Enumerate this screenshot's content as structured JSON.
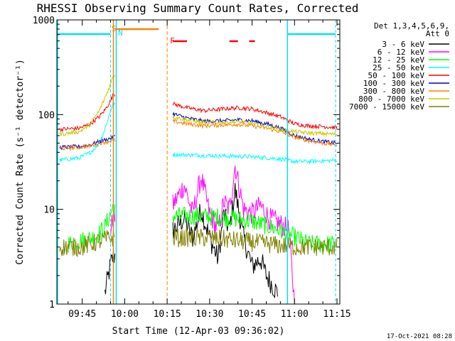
{
  "chart_data": {
    "type": "line",
    "title": "RHESSI Observing Summary Count Rates, Corrected",
    "xlabel": "Start Time (12-Apr-03 09:36:02)",
    "ylabel": "Corrected Count Rate (s⁻¹ detector⁻¹)",
    "yscale": "log",
    "ylim": [
      1,
      1000
    ],
    "xlim": [
      "09:36:02",
      "11:16:00"
    ],
    "x_ticks": [
      "09:45",
      "10:00",
      "10:15",
      "10:30",
      "10:45",
      "11:00",
      "11:15"
    ],
    "y_ticks": [
      "1",
      "10",
      "100",
      "1000"
    ],
    "grid": false,
    "legend_position": "right",
    "legend_title": [
      "Det 1,3,4,5,6,9,",
      "Att 0"
    ],
    "stamp": "17-Oct-2021 08:28",
    "flags": [
      {
        "label": "S",
        "color": "#ff8000"
      },
      {
        "label": "N",
        "color": "#00e0ff"
      },
      {
        "label": "F",
        "color": "#ff0000"
      }
    ],
    "series": [
      {
        "name": "3 - 6 keV",
        "color": "#000000",
        "points": [
          [
            "09:53",
            1.3
          ],
          [
            "09:55",
            2.6
          ],
          [
            "09:56",
            3.2
          ],
          [
            "10:17",
            6
          ],
          [
            "10:21",
            8
          ],
          [
            "10:24",
            5
          ],
          [
            "10:27",
            10
          ],
          [
            "10:30",
            5
          ],
          [
            "10:33",
            3
          ],
          [
            "10:35",
            9
          ],
          [
            "10:37",
            6
          ],
          [
            "10:39",
            16
          ],
          [
            "10:42",
            5
          ],
          [
            "10:45",
            2.5
          ],
          [
            "10:48",
            3
          ],
          [
            "10:50",
            2
          ],
          [
            "10:54",
            1.3
          ]
        ]
      },
      {
        "name": "6 - 12 keV",
        "color": "#ff00ff",
        "points": [
          [
            "09:55",
            6
          ],
          [
            "09:56",
            8
          ],
          [
            "10:17",
            11
          ],
          [
            "10:21",
            18
          ],
          [
            "10:24",
            9
          ],
          [
            "10:27",
            22
          ],
          [
            "10:30",
            9
          ],
          [
            "10:33",
            6
          ],
          [
            "10:35",
            12
          ],
          [
            "10:37",
            10
          ],
          [
            "10:39",
            29
          ],
          [
            "10:42",
            10
          ],
          [
            "10:45",
            9
          ],
          [
            "10:48",
            11
          ],
          [
            "10:51",
            8
          ],
          [
            "10:55",
            7
          ],
          [
            "10:58",
            6
          ],
          [
            "11:00",
            1
          ]
        ]
      },
      {
        "name": "12 - 25 keV",
        "color": "#00ff00",
        "points": [
          [
            "09:40",
            4.3
          ],
          [
            "09:50",
            5.2
          ],
          [
            "09:53",
            6.5
          ],
          [
            "09:55",
            9
          ],
          [
            "09:56",
            11
          ],
          [
            "10:17",
            8.5
          ],
          [
            "10:25",
            8.5
          ],
          [
            "10:35",
            8.3
          ],
          [
            "10:45",
            7.5
          ],
          [
            "10:55",
            6
          ],
          [
            "11:05",
            4.3
          ],
          [
            "11:15",
            4.3
          ]
        ]
      },
      {
        "name": "25 - 50 keV",
        "color": "#00ffff",
        "points": [
          [
            "09:37",
            33
          ],
          [
            "09:44",
            35
          ],
          [
            "09:48",
            40
          ],
          [
            "09:51",
            50
          ],
          [
            "09:53",
            70
          ],
          [
            "09:55",
            110
          ],
          [
            "09:56",
            135
          ],
          [
            "10:17",
            38
          ],
          [
            "10:30",
            37
          ],
          [
            "10:45",
            36
          ],
          [
            "10:55",
            34
          ],
          [
            "11:00",
            32
          ],
          [
            "11:05",
            32
          ],
          [
            "11:15",
            33
          ]
        ]
      },
      {
        "name": "50 - 100 keV",
        "color": "#ff0000",
        "points": [
          [
            "09:37",
            70
          ],
          [
            "09:44",
            72
          ],
          [
            "09:48",
            80
          ],
          [
            "09:51",
            95
          ],
          [
            "09:53",
            112
          ],
          [
            "09:55",
            140
          ],
          [
            "09:56",
            165
          ],
          [
            "10:17",
            130
          ],
          [
            "10:22",
            118
          ],
          [
            "10:28",
            110
          ],
          [
            "10:35",
            115
          ],
          [
            "10:40",
            118
          ],
          [
            "10:45",
            115
          ],
          [
            "10:50",
            105
          ],
          [
            "10:55",
            95
          ],
          [
            "11:00",
            80
          ],
          [
            "11:05",
            76
          ],
          [
            "11:10",
            75
          ],
          [
            "11:15",
            73
          ]
        ]
      },
      {
        "name": "100 - 300 keV",
        "color": "#0000cc",
        "points": [
          [
            "09:37",
            45
          ],
          [
            "09:44",
            46
          ],
          [
            "09:48",
            48
          ],
          [
            "09:51",
            52
          ],
          [
            "09:54",
            55
          ],
          [
            "09:56",
            58
          ],
          [
            "10:17",
            102
          ],
          [
            "10:22",
            92
          ],
          [
            "10:28",
            85
          ],
          [
            "10:35",
            86
          ],
          [
            "10:40",
            88
          ],
          [
            "10:45",
            86
          ],
          [
            "10:50",
            80
          ],
          [
            "10:55",
            72
          ],
          [
            "11:00",
            60
          ],
          [
            "11:05",
            55
          ],
          [
            "11:10",
            52
          ],
          [
            "11:15",
            50
          ]
        ]
      },
      {
        "name": "300 - 800 keV",
        "color": "#ff8000",
        "points": [
          [
            "09:37",
            44
          ],
          [
            "09:44",
            45
          ],
          [
            "09:48",
            47
          ],
          [
            "09:51",
            50
          ],
          [
            "09:54",
            52
          ],
          [
            "09:56",
            53
          ],
          [
            "10:17",
            85
          ],
          [
            "10:22",
            80
          ],
          [
            "10:28",
            76
          ],
          [
            "10:35",
            78
          ],
          [
            "10:40",
            79
          ],
          [
            "10:45",
            76
          ],
          [
            "10:50",
            72
          ],
          [
            "10:55",
            66
          ],
          [
            "11:00",
            58
          ],
          [
            "11:05",
            53
          ],
          [
            "11:10",
            50
          ],
          [
            "11:15",
            48
          ]
        ]
      },
      {
        "name": "800 - 7000 keV",
        "color": "#c8c800",
        "points": [
          [
            "09:37",
            62
          ],
          [
            "09:44",
            66
          ],
          [
            "09:48",
            80
          ],
          [
            "09:51",
            110
          ],
          [
            "09:53",
            150
          ],
          [
            "09:55",
            210
          ],
          [
            "09:56",
            265
          ],
          [
            "10:17",
            95
          ],
          [
            "10:22",
            88
          ],
          [
            "10:28",
            82
          ],
          [
            "10:35",
            83
          ],
          [
            "10:40",
            84
          ],
          [
            "10:45",
            80
          ],
          [
            "10:50",
            75
          ],
          [
            "10:55",
            70
          ],
          [
            "11:00",
            66
          ],
          [
            "11:05",
            64
          ],
          [
            "11:10",
            63
          ],
          [
            "11:15",
            62
          ]
        ]
      },
      {
        "name": "7000 - 15000 keV",
        "color": "#808000",
        "points": [
          [
            "09:37",
            4
          ],
          [
            "09:45",
            4
          ],
          [
            "09:50",
            4.5
          ],
          [
            "09:55",
            5
          ],
          [
            "10:17",
            5
          ],
          [
            "10:30",
            5
          ],
          [
            "10:45",
            4.5
          ],
          [
            "11:00",
            4
          ],
          [
            "11:15",
            4
          ]
        ]
      }
    ]
  }
}
